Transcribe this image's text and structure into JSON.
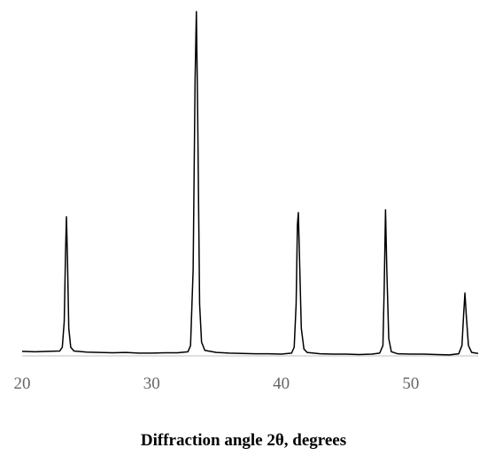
{
  "chart_data": {
    "type": "line",
    "xlabel": "Diffraction angle 2θ, degrees",
    "xlim": [
      20,
      55.2
    ],
    "xticks": [
      20,
      30,
      40,
      50
    ],
    "ylim": [
      0,
      100
    ],
    "series": [
      {
        "color": "#000000",
        "x": [
          20,
          21,
          22,
          22.9,
          23.1,
          23.25,
          23.35,
          23.42,
          23.5,
          23.6,
          23.75,
          24,
          25,
          26,
          27,
          28,
          29,
          30,
          31,
          32,
          32.8,
          33.0,
          33.2,
          33.35,
          33.45,
          33.55,
          33.7,
          33.85,
          34.1,
          35,
          36,
          37,
          38,
          39,
          40,
          40.8,
          41.0,
          41.15,
          41.25,
          41.32,
          41.4,
          41.55,
          41.75,
          42,
          43,
          44,
          45,
          46,
          47,
          47.6,
          47.85,
          47.95,
          48.05,
          48.15,
          48.3,
          48.5,
          49,
          50,
          51,
          52,
          53,
          53.7,
          53.95,
          54.08,
          54.18,
          54.28,
          54.45,
          54.7,
          55.2
        ],
        "values": [
          1.3,
          1.2,
          1.3,
          1.4,
          2.5,
          10,
          30,
          40.3,
          28,
          8,
          2.5,
          1.4,
          1.1,
          1.0,
          0.9,
          1.0,
          0.8,
          0.8,
          0.9,
          0.9,
          1.2,
          3,
          25,
          80,
          99.7,
          70,
          15,
          4,
          1.6,
          1.0,
          0.8,
          0.7,
          0.6,
          0.6,
          0.5,
          0.8,
          2.5,
          15,
          38,
          41.5,
          30,
          8,
          2,
          1.0,
          0.6,
          0.5,
          0.5,
          0.4,
          0.5,
          0.8,
          3,
          20,
          42.3,
          25,
          5,
          1.2,
          0.6,
          0.5,
          0.5,
          0.4,
          0.3,
          0.6,
          3,
          12,
          18.2,
          12,
          3,
          1.0,
          0.7
        ]
      }
    ]
  }
}
